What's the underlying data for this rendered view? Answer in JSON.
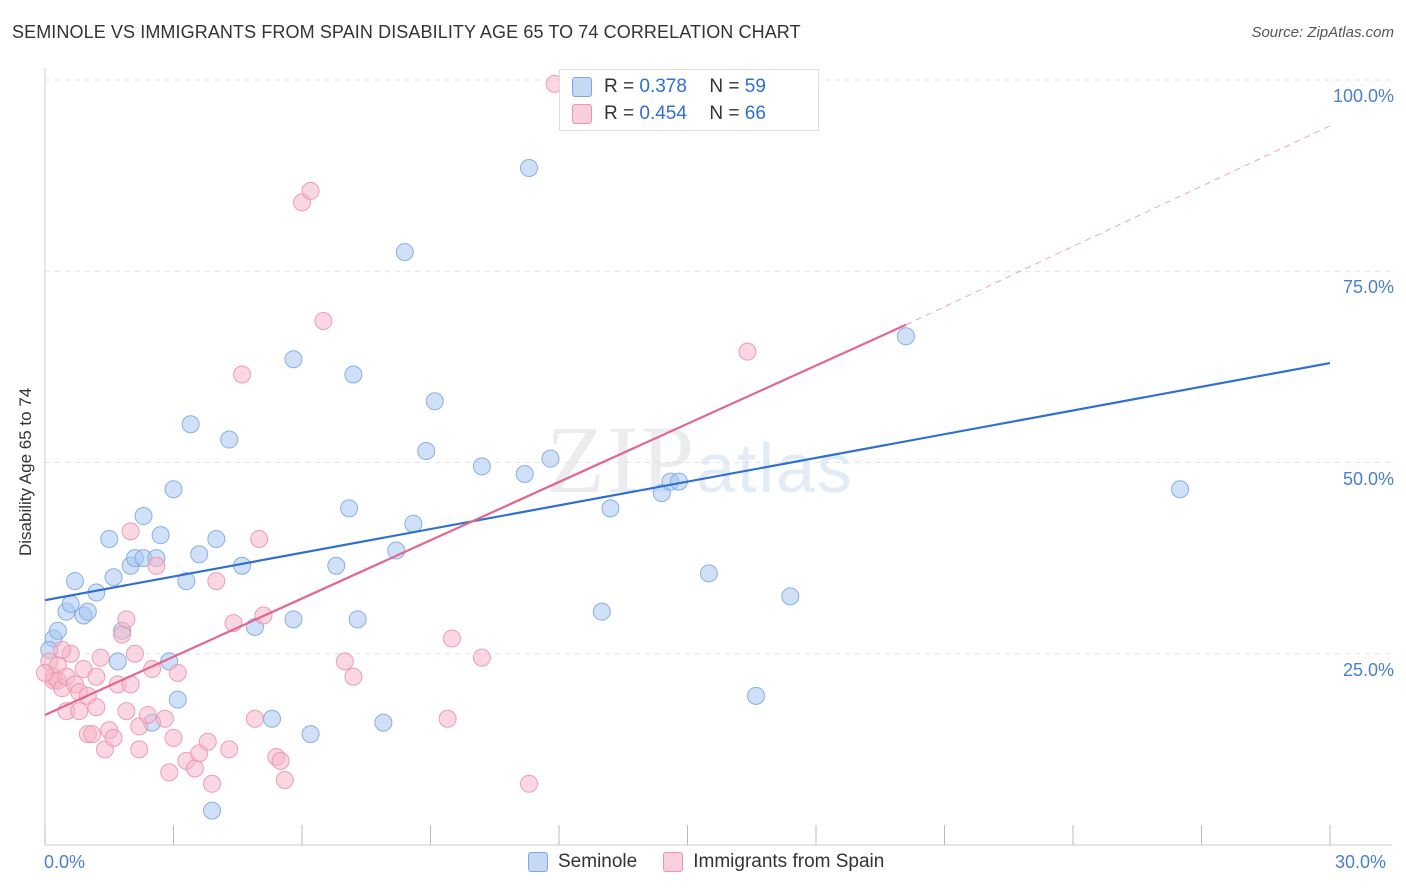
{
  "title": "SEMINOLE VS IMMIGRANTS FROM SPAIN DISABILITY AGE 65 TO 74 CORRELATION CHART",
  "source": "Source: ZipAtlas.com",
  "watermark": "ZIPatlas",
  "legend": {
    "r_label": "R =",
    "n_label": "N =",
    "rows": [
      {
        "r": "0.378",
        "n": "59"
      },
      {
        "r": "0.454",
        "n": "66"
      }
    ]
  },
  "bottom_legend": [
    "Seminole",
    "Immigrants from Spain"
  ],
  "chart_data": {
    "type": "scatter",
    "title": "SEMINOLE VS IMMIGRANTS FROM SPAIN DISABILITY AGE 65 TO 74 CORRELATION CHART",
    "xlabel": "",
    "ylabel": "Disability Age 65 to 74",
    "xlim": [
      0,
      30
    ],
    "ylim": [
      0,
      100
    ],
    "x_ticks": [
      "0.0%",
      "30.0%"
    ],
    "y_ticks": [
      "25.0%",
      "50.0%",
      "75.0%",
      "100.0%"
    ],
    "y_tick_values": [
      25,
      50,
      75,
      100
    ],
    "grid": true,
    "legend_position": "top-center",
    "colors": {
      "Seminole": "#a9c8f0",
      "Seminole_line": "#2f6fd0",
      "Immigrants from Spain": "#f5b7c9",
      "Immigrants from Spain_line": "#e26690"
    },
    "series": [
      {
        "name": "Seminole",
        "r": 0.378,
        "n": 59,
        "trend": {
          "x": [
            0,
            30
          ],
          "y": [
            32.0,
            63.0
          ]
        },
        "points": [
          [
            0.2,
            27
          ],
          [
            0.3,
            28
          ],
          [
            0.5,
            30.5
          ],
          [
            0.6,
            31.5
          ],
          [
            0.7,
            34.5
          ],
          [
            0.9,
            30
          ],
          [
            1.0,
            30.5
          ],
          [
            1.2,
            33
          ],
          [
            1.5,
            40
          ],
          [
            1.6,
            35
          ],
          [
            1.7,
            24
          ],
          [
            1.8,
            28
          ],
          [
            2.0,
            36.5
          ],
          [
            2.1,
            37.5
          ],
          [
            2.3,
            37.5
          ],
          [
            2.3,
            43
          ],
          [
            2.5,
            16
          ],
          [
            2.6,
            37.5
          ],
          [
            2.7,
            40.5
          ],
          [
            2.9,
            24
          ],
          [
            3.0,
            46.5
          ],
          [
            3.1,
            19
          ],
          [
            3.3,
            34.5
          ],
          [
            3.4,
            55
          ],
          [
            3.6,
            38
          ],
          [
            3.9,
            4.5
          ],
          [
            4.0,
            40
          ],
          [
            4.3,
            53
          ],
          [
            4.6,
            36.5
          ],
          [
            4.9,
            28.5
          ],
          [
            5.3,
            16.5
          ],
          [
            5.8,
            63.5
          ],
          [
            5.8,
            29.5
          ],
          [
            6.2,
            14.5
          ],
          [
            6.8,
            36.5
          ],
          [
            7.1,
            44
          ],
          [
            7.2,
            61.5
          ],
          [
            7.3,
            29.5
          ],
          [
            7.9,
            16
          ],
          [
            8.2,
            38.5
          ],
          [
            8.4,
            77.5
          ],
          [
            8.6,
            42
          ],
          [
            8.9,
            51.5
          ],
          [
            9.1,
            58
          ],
          [
            10.2,
            49.5
          ],
          [
            11.2,
            48.5
          ],
          [
            11.3,
            88.5
          ],
          [
            11.8,
            50.5
          ],
          [
            13.0,
            30.5
          ],
          [
            13.2,
            44
          ],
          [
            14.4,
            46
          ],
          [
            14.6,
            47.5
          ],
          [
            14.8,
            47.5
          ],
          [
            15.5,
            35.5
          ],
          [
            16.6,
            19.5
          ],
          [
            17.4,
            32.5
          ],
          [
            20.1,
            66.5
          ],
          [
            26.5,
            46.5
          ],
          [
            0.1,
            25.5
          ]
        ]
      },
      {
        "name": "Immigrants from Spain",
        "r": 0.454,
        "n": 66,
        "trend": {
          "x": [
            0,
            20.1
          ],
          "y": [
            17.0,
            68.0
          ]
        },
        "trend_dashed": {
          "x": [
            20.1,
            30
          ],
          "y": [
            68.0,
            94.0
          ]
        },
        "points": [
          [
            0.1,
            24
          ],
          [
            0.2,
            22
          ],
          [
            0.2,
            21.5
          ],
          [
            0.3,
            23.5
          ],
          [
            0.3,
            21.5
          ],
          [
            0.4,
            20.5
          ],
          [
            0.5,
            17.5
          ],
          [
            0.5,
            22
          ],
          [
            0.6,
            25
          ],
          [
            0.7,
            21
          ],
          [
            0.8,
            17.5
          ],
          [
            0.8,
            20
          ],
          [
            0.9,
            23
          ],
          [
            1.0,
            19.5
          ],
          [
            1.0,
            14.5
          ],
          [
            1.1,
            14.5
          ],
          [
            1.2,
            22
          ],
          [
            1.2,
            18
          ],
          [
            1.3,
            24.5
          ],
          [
            1.4,
            12.5
          ],
          [
            1.5,
            15
          ],
          [
            1.6,
            14
          ],
          [
            1.7,
            21
          ],
          [
            1.8,
            27.5
          ],
          [
            1.9,
            29.5
          ],
          [
            1.9,
            17.5
          ],
          [
            2.0,
            21
          ],
          [
            2.0,
            41
          ],
          [
            2.1,
            25
          ],
          [
            2.2,
            15.5
          ],
          [
            2.2,
            12.5
          ],
          [
            2.4,
            17
          ],
          [
            2.5,
            23
          ],
          [
            2.6,
            36.5
          ],
          [
            2.8,
            16.5
          ],
          [
            2.9,
            9.5
          ],
          [
            3.0,
            14
          ],
          [
            3.1,
            22.5
          ],
          [
            3.3,
            11
          ],
          [
            3.5,
            10
          ],
          [
            3.6,
            12
          ],
          [
            3.8,
            13.5
          ],
          [
            3.9,
            8
          ],
          [
            4.0,
            34.5
          ],
          [
            4.3,
            12.5
          ],
          [
            4.4,
            29
          ],
          [
            4.6,
            61.5
          ],
          [
            4.9,
            16.5
          ],
          [
            5.0,
            40
          ],
          [
            5.1,
            30
          ],
          [
            5.4,
            11.5
          ],
          [
            5.5,
            11
          ],
          [
            5.6,
            8.5
          ],
          [
            6.0,
            84
          ],
          [
            6.2,
            85.5
          ],
          [
            6.5,
            68.5
          ],
          [
            7.0,
            24
          ],
          [
            7.2,
            22
          ],
          [
            9.4,
            16.5
          ],
          [
            9.5,
            27
          ],
          [
            10.2,
            24.5
          ],
          [
            11.3,
            8
          ],
          [
            11.9,
            99.5
          ],
          [
            16.4,
            64.5
          ],
          [
            0.0,
            22.5
          ],
          [
            0.4,
            25.5
          ]
        ]
      }
    ]
  }
}
